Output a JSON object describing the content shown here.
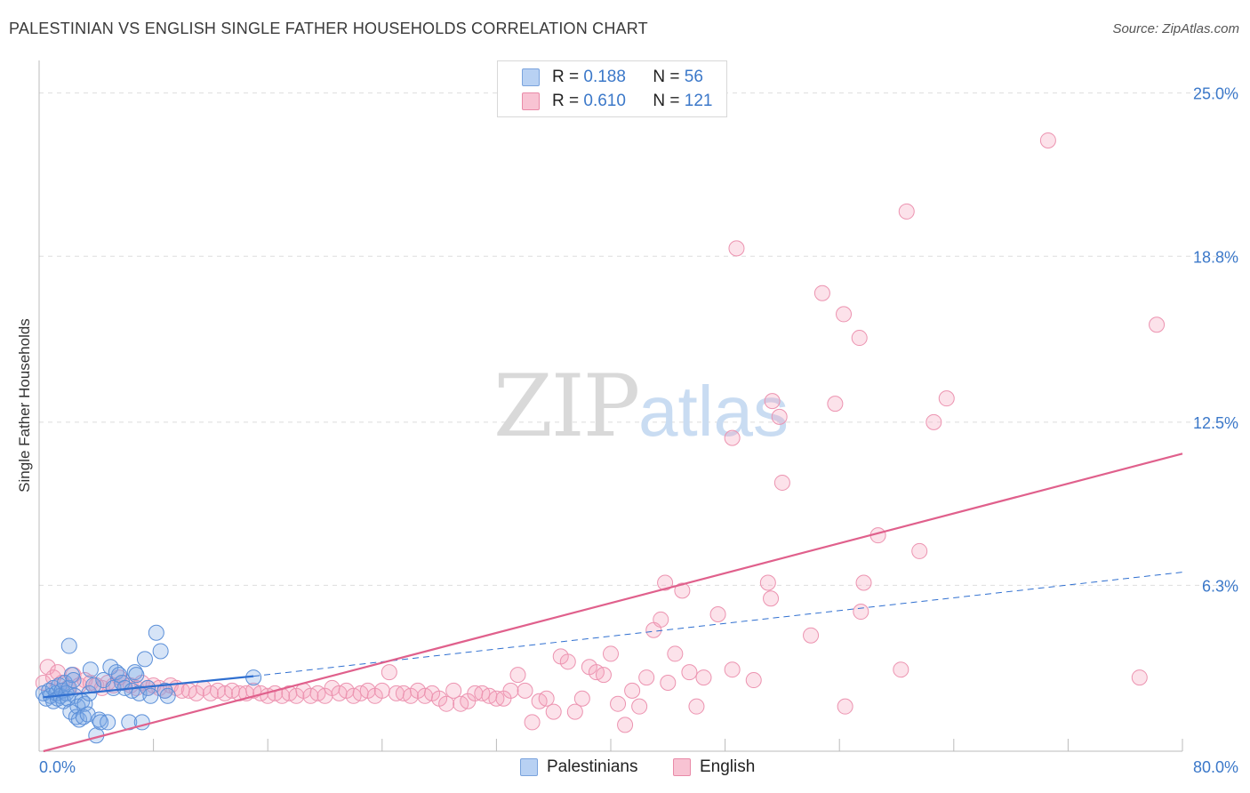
{
  "header": {
    "title": "PALESTINIAN VS ENGLISH SINGLE FATHER HOUSEHOLDS CORRELATION CHART",
    "source": "Source: ZipAtlas.com"
  },
  "watermark": {
    "zip": "ZIP",
    "atlas": "atlas"
  },
  "legend": {
    "rows": [
      {
        "r_label": "R =",
        "r_value": "0.188",
        "n_label": "N =",
        "n_value": "56",
        "color": "#b8d1f3"
      },
      {
        "r_label": "R =",
        "r_value": "0.610",
        "n_label": "N =",
        "n_value": "121",
        "color": "#f8c3d3"
      }
    ],
    "bottom": [
      "Palestinians",
      "English"
    ]
  },
  "chart_data": {
    "type": "scatter",
    "title": "PALESTINIAN VS ENGLISH SINGLE FATHER HOUSEHOLDS CORRELATION CHART",
    "xlabel": "",
    "ylabel": "Single Father Households",
    "xlim": [
      0,
      80
    ],
    "ylim": [
      0,
      25.9
    ],
    "x_tick_labels": [
      "0.0%",
      "80.0%"
    ],
    "y_ticks": [
      6.3,
      12.5,
      18.8,
      25.0
    ],
    "y_tick_labels": [
      "6.3%",
      "12.5%",
      "18.8%",
      "25.0%"
    ],
    "grid": "horizontal dashed",
    "legend_position": "top-center",
    "colors": {
      "Palestinians": "#5b8fd8",
      "English": "#e97a9f",
      "blue_line": "#2f6fd0",
      "pink_line": "#e0608c"
    },
    "series": [
      {
        "name": "Palestinians",
        "points": [
          [
            0.3,
            2.2
          ],
          [
            0.5,
            2.0
          ],
          [
            0.7,
            2.3
          ],
          [
            0.8,
            2.1
          ],
          [
            1.0,
            1.9
          ],
          [
            1.0,
            2.4
          ],
          [
            1.2,
            2.2
          ],
          [
            1.3,
            2.0
          ],
          [
            1.4,
            2.5
          ],
          [
            1.5,
            2.1
          ],
          [
            1.6,
            2.3
          ],
          [
            1.7,
            1.9
          ],
          [
            1.8,
            2.6
          ],
          [
            1.9,
            2.2
          ],
          [
            2.0,
            2.0
          ],
          [
            2.1,
            2.4
          ],
          [
            2.2,
            1.5
          ],
          [
            2.3,
            2.9
          ],
          [
            2.4,
            2.7
          ],
          [
            2.5,
            2.1
          ],
          [
            2.1,
            4.0
          ],
          [
            2.6,
            1.3
          ],
          [
            2.7,
            1.7
          ],
          [
            2.8,
            1.2
          ],
          [
            3.0,
            1.9
          ],
          [
            3.1,
            1.3
          ],
          [
            3.2,
            1.8
          ],
          [
            3.4,
            1.4
          ],
          [
            3.5,
            2.2
          ],
          [
            3.6,
            3.1
          ],
          [
            3.8,
            2.5
          ],
          [
            4.0,
            0.6
          ],
          [
            4.2,
            1.2
          ],
          [
            4.3,
            1.1
          ],
          [
            4.5,
            2.7
          ],
          [
            4.8,
            1.1
          ],
          [
            5.0,
            3.2
          ],
          [
            5.2,
            2.4
          ],
          [
            5.4,
            3.0
          ],
          [
            5.6,
            2.9
          ],
          [
            5.8,
            2.6
          ],
          [
            6.0,
            2.4
          ],
          [
            6.3,
            1.1
          ],
          [
            6.5,
            2.3
          ],
          [
            6.7,
            3.0
          ],
          [
            6.8,
            2.9
          ],
          [
            7.0,
            2.2
          ],
          [
            7.2,
            1.1
          ],
          [
            7.4,
            3.5
          ],
          [
            7.6,
            2.4
          ],
          [
            7.8,
            2.1
          ],
          [
            8.2,
            4.5
          ],
          [
            8.5,
            3.8
          ],
          [
            8.8,
            2.3
          ],
          [
            9.0,
            2.1
          ],
          [
            15.0,
            2.8
          ]
        ]
      },
      {
        "name": "English",
        "points": [
          [
            0.3,
            2.6
          ],
          [
            0.6,
            3.2
          ],
          [
            1.0,
            2.8
          ],
          [
            1.3,
            3.0
          ],
          [
            1.6,
            2.6
          ],
          [
            2.0,
            2.4
          ],
          [
            2.4,
            2.9
          ],
          [
            2.8,
            2.5
          ],
          [
            3.2,
            2.7
          ],
          [
            3.6,
            2.6
          ],
          [
            4.0,
            2.5
          ],
          [
            4.4,
            2.4
          ],
          [
            4.8,
            2.6
          ],
          [
            5.2,
            2.5
          ],
          [
            5.6,
            2.8
          ],
          [
            6.0,
            2.6
          ],
          [
            6.4,
            2.5
          ],
          [
            6.8,
            2.4
          ],
          [
            7.2,
            2.6
          ],
          [
            7.6,
            2.4
          ],
          [
            8.0,
            2.5
          ],
          [
            8.4,
            2.4
          ],
          [
            8.8,
            2.3
          ],
          [
            9.2,
            2.5
          ],
          [
            9.6,
            2.4
          ],
          [
            10.0,
            2.3
          ],
          [
            10.5,
            2.3
          ],
          [
            11.0,
            2.2
          ],
          [
            11.5,
            2.4
          ],
          [
            12.0,
            2.2
          ],
          [
            12.5,
            2.3
          ],
          [
            13.0,
            2.2
          ],
          [
            13.5,
            2.3
          ],
          [
            14.0,
            2.2
          ],
          [
            14.5,
            2.2
          ],
          [
            15.0,
            2.3
          ],
          [
            15.5,
            2.2
          ],
          [
            16.0,
            2.1
          ],
          [
            16.5,
            2.2
          ],
          [
            17.0,
            2.1
          ],
          [
            17.5,
            2.2
          ],
          [
            18.0,
            2.1
          ],
          [
            18.5,
            2.3
          ],
          [
            19.0,
            2.1
          ],
          [
            19.5,
            2.2
          ],
          [
            20.0,
            2.1
          ],
          [
            20.5,
            2.4
          ],
          [
            21.0,
            2.2
          ],
          [
            21.5,
            2.3
          ],
          [
            22.0,
            2.1
          ],
          [
            22.5,
            2.2
          ],
          [
            23.0,
            2.3
          ],
          [
            23.5,
            2.1
          ],
          [
            24.0,
            2.3
          ],
          [
            24.5,
            3.0
          ],
          [
            25.0,
            2.2
          ],
          [
            25.5,
            2.2
          ],
          [
            26.0,
            2.1
          ],
          [
            26.5,
            2.3
          ],
          [
            27.0,
            2.1
          ],
          [
            27.5,
            2.2
          ],
          [
            28.0,
            2.0
          ],
          [
            28.5,
            1.8
          ],
          [
            29.0,
            2.3
          ],
          [
            29.5,
            1.8
          ],
          [
            30.0,
            1.9
          ],
          [
            30.5,
            2.2
          ],
          [
            31.0,
            2.2
          ],
          [
            31.5,
            2.1
          ],
          [
            32.0,
            2.0
          ],
          [
            32.5,
            2.0
          ],
          [
            33.0,
            2.3
          ],
          [
            33.5,
            2.9
          ],
          [
            34.0,
            2.3
          ],
          [
            34.5,
            1.1
          ],
          [
            35.0,
            1.9
          ],
          [
            35.5,
            2.0
          ],
          [
            36.0,
            1.5
          ],
          [
            36.5,
            3.6
          ],
          [
            37.0,
            3.4
          ],
          [
            37.5,
            1.5
          ],
          [
            38.0,
            2.0
          ],
          [
            38.5,
            3.2
          ],
          [
            39.0,
            3.0
          ],
          [
            39.5,
            2.9
          ],
          [
            40.0,
            3.7
          ],
          [
            40.5,
            1.8
          ],
          [
            41.0,
            1.0
          ],
          [
            41.5,
            2.3
          ],
          [
            42.0,
            1.7
          ],
          [
            42.5,
            2.8
          ],
          [
            43.0,
            4.6
          ],
          [
            43.5,
            5.0
          ],
          [
            43.8,
            6.4
          ],
          [
            44.0,
            2.6
          ],
          [
            44.5,
            3.7
          ],
          [
            45.0,
            6.1
          ],
          [
            45.5,
            3.0
          ],
          [
            46.0,
            1.7
          ],
          [
            46.5,
            2.8
          ],
          [
            47.5,
            5.2
          ],
          [
            48.5,
            3.1
          ],
          [
            48.8,
            19.1
          ],
          [
            48.5,
            11.9
          ],
          [
            50.0,
            2.7
          ],
          [
            51.0,
            6.4
          ],
          [
            51.3,
            13.3
          ],
          [
            51.8,
            12.7
          ],
          [
            51.2,
            5.8
          ],
          [
            52.0,
            10.2
          ],
          [
            54.8,
            17.4
          ],
          [
            54.0,
            4.4
          ],
          [
            56.3,
            16.6
          ],
          [
            55.7,
            13.2
          ],
          [
            57.4,
            15.7
          ],
          [
            57.5,
            5.3
          ],
          [
            57.7,
            6.4
          ],
          [
            56.4,
            1.7
          ],
          [
            58.7,
            8.2
          ],
          [
            60.3,
            3.1
          ],
          [
            60.7,
            20.5
          ],
          [
            61.6,
            7.6
          ],
          [
            63.5,
            13.4
          ],
          [
            62.6,
            12.5
          ],
          [
            70.6,
            23.2
          ],
          [
            77.0,
            2.8
          ],
          [
            78.2,
            16.2
          ]
        ]
      }
    ],
    "trend_lines": [
      {
        "series": "Palestinians",
        "style": "solid",
        "from": [
          0.3,
          2.05
        ],
        "to": [
          15.0,
          2.85
        ]
      },
      {
        "series": "Palestinians",
        "style": "dashed",
        "from": [
          15.0,
          2.85
        ],
        "to": [
          80,
          6.8
        ]
      },
      {
        "series": "English",
        "style": "solid",
        "from": [
          0.3,
          0.0
        ],
        "to": [
          80,
          11.3
        ]
      }
    ]
  }
}
